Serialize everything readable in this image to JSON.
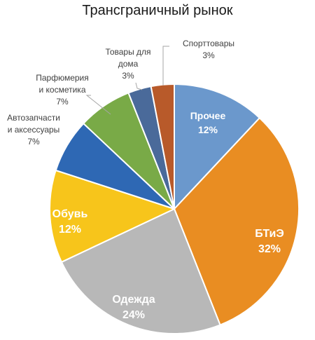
{
  "chart_data": {
    "type": "pie",
    "title": "Трансграничный рынок",
    "slices": [
      {
        "name": "Прочее",
        "value": 12,
        "value_label": "12%",
        "color": "#6b98cc"
      },
      {
        "name": "БТиЭ",
        "value": 32,
        "value_label": "32%",
        "color": "#e98d22"
      },
      {
        "name": "Одежда",
        "value": 24,
        "value_label": "24%",
        "color": "#b8b8b8"
      },
      {
        "name": "Обувь",
        "value": 12,
        "value_label": "12%",
        "color": "#f7c51b"
      },
      {
        "name": "Автозапчасти и аксессуары",
        "name_lines": [
          "Автозапчасти",
          "и аксессуары"
        ],
        "value": 7,
        "value_label": "7%",
        "color": "#2e68b4"
      },
      {
        "name": "Парфюмерия и косметика",
        "name_lines": [
          "Парфюмерия",
          "и косметика"
        ],
        "value": 7,
        "value_label": "7%",
        "color": "#79aa47"
      },
      {
        "name": "Товары для дома",
        "name_lines": [
          "Товары для",
          "дома"
        ],
        "value": 3,
        "value_label": "3%",
        "color": "#4a6a9a"
      },
      {
        "name": "Спорттовары",
        "name_lines": [
          "Спорттовары"
        ],
        "value": 3,
        "value_label": "3%",
        "color": "#b85a2a"
      }
    ],
    "label_style": {
      "inside": [
        "Прочее",
        "БТиЭ",
        "Одежда",
        "Обувь"
      ],
      "outside": [
        "Автозапчасти и аксессуары",
        "Парфюмерия и косметика",
        "Товары для дома",
        "Спорттовары"
      ]
    },
    "start_angle": "12 o'clock",
    "direction": "clockwise",
    "legend": "none"
  }
}
